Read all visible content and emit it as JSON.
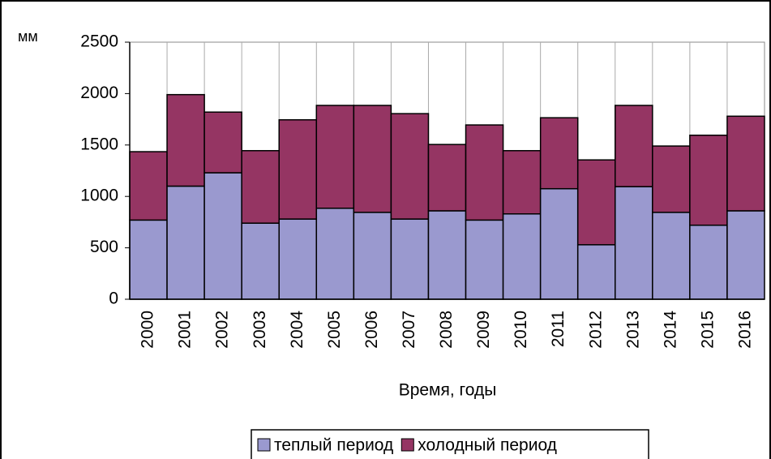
{
  "chart_data": {
    "type": "stacked_bar",
    "y_label": "мм",
    "x_label": "Время, годы",
    "categories": [
      "2000",
      "2001",
      "2002",
      "2003",
      "2004",
      "2005",
      "2006",
      "2007",
      "2008",
      "2009",
      "2010",
      "2011",
      "2012",
      "2013",
      "2014",
      "2015",
      "2016"
    ],
    "series": [
      {
        "name": "теплый период",
        "color": "#9a99cf",
        "values": [
          770,
          1100,
          1230,
          740,
          780,
          885,
          845,
          780,
          860,
          770,
          830,
          1075,
          530,
          1095,
          845,
          720,
          860
        ]
      },
      {
        "name": "холодный период",
        "color": "#953563",
        "values": [
          665,
          890,
          590,
          705,
          965,
          1000,
          1040,
          1025,
          645,
          925,
          615,
          690,
          825,
          790,
          645,
          875,
          920
        ]
      }
    ],
    "ylim": [
      0,
      2500
    ],
    "yticks": [
      0,
      500,
      1000,
      1500,
      2000,
      2500
    ],
    "legend": "bottom"
  }
}
